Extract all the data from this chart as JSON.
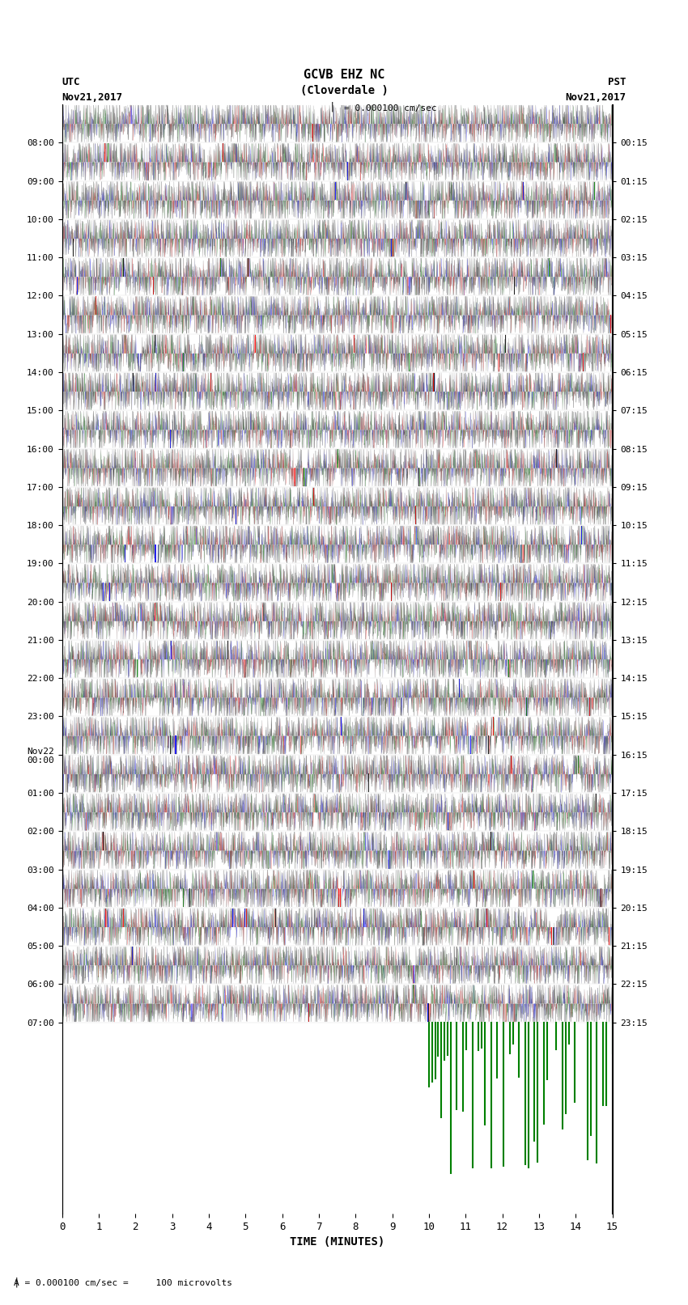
{
  "title_line1": "GCVB EHZ NC",
  "title_line2": "(Cloverdale )",
  "amplitude_label": "= 0.000100 cm/sec",
  "utc_label": "UTC",
  "utc_date": "Nov21,2017",
  "pst_label": "PST",
  "pst_date": "Nov21,2017",
  "xlabel": "TIME (MINUTES)",
  "bottom_note": "= 0.000100 cm/sec =     100 microvolts",
  "xlim": [
    0,
    15
  ],
  "ylim": [
    0,
    23
  ],
  "left_yticks": [
    "08:00",
    "09:00",
    "10:00",
    "11:00",
    "12:00",
    "13:00",
    "14:00",
    "15:00",
    "16:00",
    "17:00",
    "18:00",
    "19:00",
    "20:00",
    "21:00",
    "22:00",
    "23:00",
    "Nov22\n00:00",
    "01:00",
    "02:00",
    "03:00",
    "04:00",
    "05:00",
    "06:00",
    "07:00"
  ],
  "right_yticks": [
    "00:15",
    "01:15",
    "02:15",
    "03:15",
    "04:15",
    "05:15",
    "06:15",
    "07:15",
    "08:15",
    "09:15",
    "10:15",
    "11:15",
    "12:15",
    "13:15",
    "14:15",
    "15:15",
    "16:15",
    "17:15",
    "18:15",
    "19:15",
    "20:15",
    "21:15",
    "22:15",
    "23:15"
  ],
  "n_rows": 24,
  "n_cols": 2700,
  "background_color": "#ffffff",
  "seismo_colors": [
    "#ff0000",
    "#008000",
    "#0000ff",
    "#000000"
  ],
  "noise_seed": 42,
  "fig_width": 8.5,
  "fig_height": 16.13,
  "dpi": 100
}
